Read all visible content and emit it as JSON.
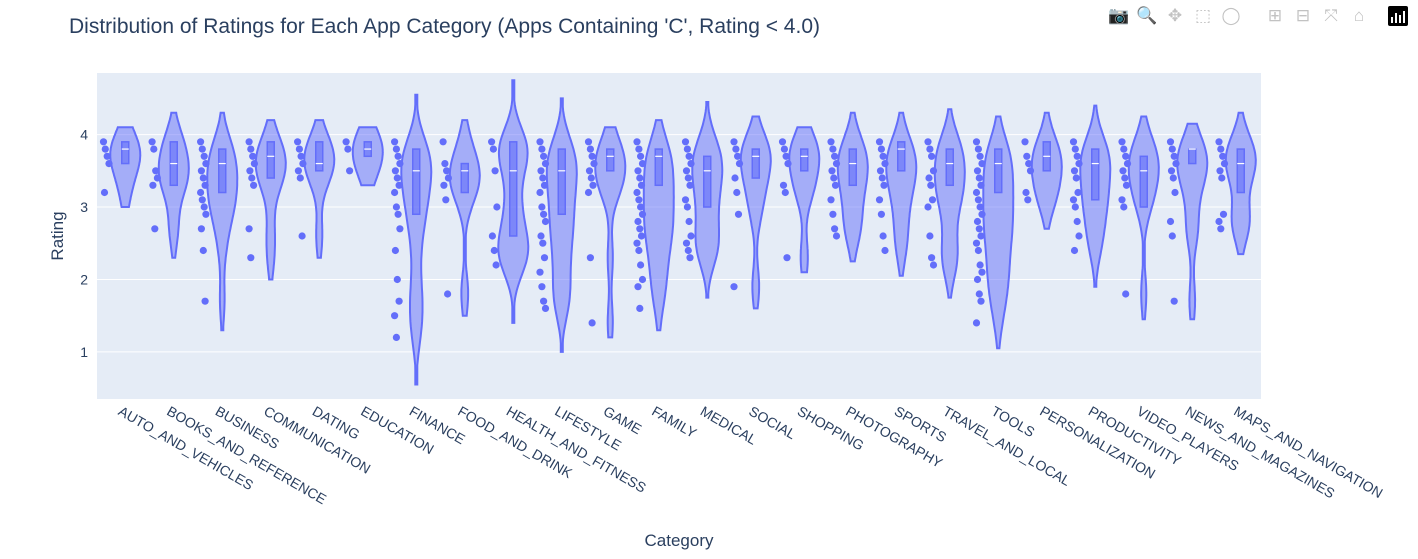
{
  "modebar": {
    "buttons": [
      {
        "name": "camera-icon",
        "glyph": "📷",
        "active": false
      },
      {
        "name": "zoom-icon",
        "glyph": "🔍",
        "active": true
      },
      {
        "name": "pan-icon",
        "glyph": "✥",
        "active": false
      },
      {
        "name": "box-select-icon",
        "glyph": "⬚",
        "active": false
      },
      {
        "name": "lasso-select-icon",
        "glyph": "◯",
        "active": false
      },
      {
        "name": "zoom-in-icon",
        "glyph": "⊞",
        "active": false
      },
      {
        "name": "zoom-out-icon",
        "glyph": "⊟",
        "active": false
      },
      {
        "name": "autoscale-icon",
        "glyph": "⤧",
        "active": false
      },
      {
        "name": "reset-axes-icon",
        "glyph": "⌂",
        "active": false
      }
    ]
  },
  "chart_data": {
    "type": "violin",
    "title": "Distribution of Ratings for Each App Category (Apps Containing 'C', Rating < 4.0)",
    "xlabel": "Category",
    "ylabel": "Rating",
    "ylim": [
      0.35,
      4.85
    ],
    "yticks": [
      1,
      2,
      3,
      4
    ],
    "grid": true,
    "color": "#636efa",
    "plot_bg": "#e5ecf6",
    "series": [
      {
        "category": "AUTO_AND_VEHICLES",
        "min": 3.0,
        "max": 4.1,
        "q1": 3.6,
        "median": 3.8,
        "q3": 3.9,
        "points": [
          3.9,
          3.8,
          3.7,
          3.6,
          3.2
        ]
      },
      {
        "category": "BOOKS_AND_REFERENCE",
        "min": 2.3,
        "max": 4.3,
        "q1": 3.3,
        "median": 3.6,
        "q3": 3.9,
        "points": [
          3.9,
          3.8,
          3.5,
          3.4,
          3.3,
          2.7
        ]
      },
      {
        "category": "BUSINESS",
        "min": 1.3,
        "max": 4.3,
        "q1": 3.2,
        "median": 3.6,
        "q3": 3.8,
        "points": [
          3.9,
          3.8,
          3.7,
          3.6,
          3.5,
          3.4,
          3.3,
          3.2,
          3.1,
          3.0,
          2.9,
          2.7,
          2.4,
          1.7
        ]
      },
      {
        "category": "COMMUNICATION",
        "min": 2.0,
        "max": 4.2,
        "q1": 3.4,
        "median": 3.7,
        "q3": 3.9,
        "points": [
          3.9,
          3.8,
          3.7,
          3.6,
          3.5,
          3.4,
          3.3,
          2.7,
          2.3
        ]
      },
      {
        "category": "DATING",
        "min": 2.3,
        "max": 4.2,
        "q1": 3.5,
        "median": 3.6,
        "q3": 3.9,
        "points": [
          3.9,
          3.8,
          3.7,
          3.6,
          3.5,
          3.4,
          2.6
        ]
      },
      {
        "category": "EDUCATION",
        "min": 3.3,
        "max": 4.1,
        "q1": 3.7,
        "median": 3.8,
        "q3": 3.9,
        "points": [
          3.9,
          3.8,
          3.5
        ]
      },
      {
        "category": "FINANCE",
        "min": 0.55,
        "max": 4.55,
        "q1": 2.9,
        "median": 3.5,
        "q3": 3.8,
        "points": [
          3.9,
          3.8,
          3.7,
          3.6,
          3.5,
          3.4,
          3.3,
          3.2,
          3.0,
          2.9,
          2.7,
          2.4,
          2.0,
          1.7,
          1.5,
          1.2
        ]
      },
      {
        "category": "FOOD_AND_DRINK",
        "min": 1.5,
        "max": 4.2,
        "q1": 3.2,
        "median": 3.5,
        "q3": 3.6,
        "points": [
          3.9,
          3.6,
          3.5,
          3.4,
          3.3,
          3.1,
          1.8
        ]
      },
      {
        "category": "HEALTH_AND_FITNESS",
        "min": 1.4,
        "max": 4.75,
        "q1": 2.6,
        "median": 3.5,
        "q3": 3.9,
        "points": [
          3.9,
          3.8,
          3.5,
          3.0,
          2.6,
          2.4,
          2.2
        ]
      },
      {
        "category": "LIFESTYLE",
        "min": 1.0,
        "max": 4.5,
        "q1": 2.9,
        "median": 3.5,
        "q3": 3.8,
        "points": [
          3.9,
          3.8,
          3.7,
          3.6,
          3.5,
          3.4,
          3.3,
          3.2,
          3.0,
          2.9,
          2.8,
          2.6,
          2.5,
          2.3,
          2.1,
          1.9,
          1.7,
          1.6
        ]
      },
      {
        "category": "GAME",
        "min": 1.2,
        "max": 4.1,
        "q1": 3.5,
        "median": 3.7,
        "q3": 3.8,
        "points": [
          3.9,
          3.8,
          3.7,
          3.6,
          3.5,
          3.4,
          3.3,
          3.2,
          2.3,
          1.4
        ]
      },
      {
        "category": "FAMILY",
        "min": 1.3,
        "max": 4.2,
        "q1": 3.3,
        "median": 3.7,
        "q3": 3.8,
        "points": [
          3.9,
          3.8,
          3.7,
          3.6,
          3.5,
          3.4,
          3.3,
          3.2,
          3.1,
          3.0,
          2.9,
          2.8,
          2.7,
          2.6,
          2.5,
          2.4,
          2.2,
          2.0,
          1.9,
          1.6
        ]
      },
      {
        "category": "MEDICAL",
        "min": 1.75,
        "max": 4.45,
        "q1": 3.0,
        "median": 3.5,
        "q3": 3.7,
        "points": [
          3.9,
          3.8,
          3.7,
          3.6,
          3.5,
          3.4,
          3.3,
          3.1,
          3.0,
          2.8,
          2.6,
          2.5,
          2.4,
          2.3
        ]
      },
      {
        "category": "SOCIAL",
        "min": 1.6,
        "max": 4.25,
        "q1": 3.4,
        "median": 3.7,
        "q3": 3.8,
        "points": [
          3.9,
          3.8,
          3.7,
          3.6,
          3.4,
          3.2,
          2.9,
          1.9
        ]
      },
      {
        "category": "SHOPPING",
        "min": 2.1,
        "max": 4.1,
        "q1": 3.5,
        "median": 3.7,
        "q3": 3.8,
        "points": [
          3.9,
          3.8,
          3.7,
          3.6,
          3.3,
          3.2,
          2.3
        ]
      },
      {
        "category": "PHOTOGRAPHY",
        "min": 2.25,
        "max": 4.3,
        "q1": 3.3,
        "median": 3.6,
        "q3": 3.8,
        "points": [
          3.9,
          3.8,
          3.7,
          3.6,
          3.5,
          3.4,
          3.3,
          3.1,
          2.9,
          2.7,
          2.6
        ]
      },
      {
        "category": "SPORTS",
        "min": 2.05,
        "max": 4.3,
        "q1": 3.5,
        "median": 3.8,
        "q3": 3.9,
        "points": [
          3.9,
          3.8,
          3.7,
          3.6,
          3.5,
          3.4,
          3.3,
          3.1,
          2.9,
          2.6,
          2.4
        ]
      },
      {
        "category": "TRAVEL_AND_LOCAL",
        "min": 1.75,
        "max": 4.35,
        "q1": 3.3,
        "median": 3.6,
        "q3": 3.8,
        "points": [
          3.9,
          3.8,
          3.7,
          3.5,
          3.4,
          3.3,
          3.1,
          3.0,
          2.6,
          2.3,
          2.2
        ]
      },
      {
        "category": "TOOLS",
        "min": 1.05,
        "max": 4.25,
        "q1": 3.2,
        "median": 3.6,
        "q3": 3.8,
        "points": [
          3.9,
          3.8,
          3.7,
          3.6,
          3.5,
          3.4,
          3.3,
          3.2,
          3.1,
          3.0,
          2.9,
          2.8,
          2.7,
          2.6,
          2.5,
          2.4,
          2.2,
          2.1,
          2.0,
          1.8,
          1.7,
          1.4
        ]
      },
      {
        "category": "PERSONALIZATION",
        "min": 2.7,
        "max": 4.3,
        "q1": 3.5,
        "median": 3.7,
        "q3": 3.9,
        "points": [
          3.9,
          3.7,
          3.6,
          3.5,
          3.2,
          3.1
        ]
      },
      {
        "category": "PRODUCTIVITY",
        "min": 1.9,
        "max": 4.4,
        "q1": 3.1,
        "median": 3.6,
        "q3": 3.8,
        "points": [
          3.9,
          3.8,
          3.7,
          3.6,
          3.5,
          3.4,
          3.2,
          3.1,
          3.0,
          2.8,
          2.6,
          2.4
        ]
      },
      {
        "category": "VIDEO_PLAYERS",
        "min": 1.45,
        "max": 4.25,
        "q1": 3.0,
        "median": 3.5,
        "q3": 3.7,
        "points": [
          3.9,
          3.8,
          3.7,
          3.6,
          3.5,
          3.4,
          3.3,
          3.1,
          3.0,
          1.8
        ]
      },
      {
        "category": "NEWS_AND_MAGAZINES",
        "min": 1.45,
        "max": 4.15,
        "q1": 3.6,
        "median": 3.8,
        "q3": 3.8,
        "points": [
          3.9,
          3.8,
          3.7,
          3.6,
          3.5,
          3.4,
          3.2,
          2.8,
          2.6,
          1.7
        ]
      },
      {
        "category": "MAPS_AND_NAVIGATION",
        "min": 2.35,
        "max": 4.3,
        "q1": 3.2,
        "median": 3.6,
        "q3": 3.8,
        "points": [
          3.9,
          3.8,
          3.7,
          3.6,
          3.5,
          3.4,
          2.9,
          2.8,
          2.7
        ]
      }
    ]
  }
}
